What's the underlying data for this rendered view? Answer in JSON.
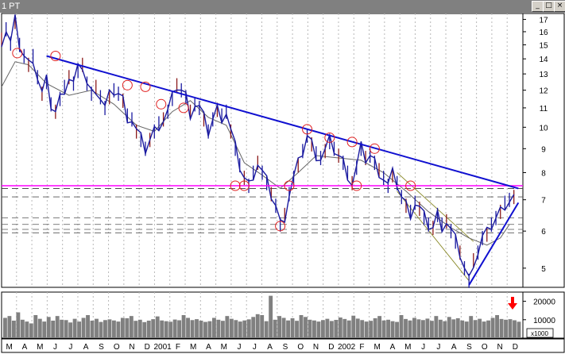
{
  "window": {
    "title": "1 PT",
    "btn_min": "_",
    "btn_max": "□",
    "btn_close": "×"
  },
  "chart_data": {
    "type": "line",
    "subtype": "candlestick-price-with-volume",
    "x_ticks": [
      "M",
      "A",
      "M",
      "J",
      "J",
      "A",
      "S",
      "O",
      "N",
      "D",
      "2001",
      "F",
      "M",
      "A",
      "M",
      "J",
      "J",
      "A",
      "S",
      "O",
      "N",
      "D",
      "2002",
      "F",
      "M",
      "A",
      "M",
      "J",
      "J",
      "A",
      "S",
      "O",
      "N",
      "D"
    ],
    "price_axis": {
      "ticks": [
        5,
        6,
        7,
        8,
        9,
        10,
        11,
        12,
        13,
        14,
        15,
        16,
        17
      ],
      "scale": "log",
      "range": [
        4.55,
        17.5
      ]
    },
    "volume_axis": {
      "ticks": [
        "20000",
        "10000"
      ],
      "unit_label": "x1000",
      "range": [
        0,
        25000
      ]
    },
    "price_series": [
      [
        0,
        15.4
      ],
      [
        2,
        16.2
      ],
      [
        4,
        15.1
      ],
      [
        6,
        16.8
      ],
      [
        8,
        15.0
      ],
      [
        10,
        14.2
      ],
      [
        12,
        13.6
      ],
      [
        14,
        14.2
      ],
      [
        16,
        12.8
      ],
      [
        18,
        11.8
      ],
      [
        20,
        12.5
      ],
      [
        22,
        11.2
      ],
      [
        24,
        10.8
      ],
      [
        26,
        11.5
      ],
      [
        28,
        12.2
      ],
      [
        30,
        12.8
      ],
      [
        32,
        12.4
      ],
      [
        34,
        13.2
      ],
      [
        36,
        13.6
      ],
      [
        38,
        12.4
      ],
      [
        40,
        11.8
      ],
      [
        42,
        12.2
      ],
      [
        44,
        11.6
      ],
      [
        46,
        11.0
      ],
      [
        48,
        11.6
      ],
      [
        50,
        12.0
      ],
      [
        52,
        11.8
      ],
      [
        54,
        11.4
      ],
      [
        56,
        10.6
      ],
      [
        58,
        10.4
      ],
      [
        60,
        9.8
      ],
      [
        62,
        9.4
      ],
      [
        64,
        9.0
      ],
      [
        66,
        9.4
      ],
      [
        68,
        9.8
      ],
      [
        70,
        10.2
      ],
      [
        72,
        10.4
      ],
      [
        74,
        10.8
      ],
      [
        76,
        11.5
      ],
      [
        78,
        12.3
      ],
      [
        80,
        12.0
      ],
      [
        82,
        11.6
      ],
      [
        84,
        10.8
      ],
      [
        86,
        11.2
      ],
      [
        88,
        11.0
      ],
      [
        90,
        10.4
      ],
      [
        92,
        9.8
      ],
      [
        94,
        10.4
      ],
      [
        96,
        10.9
      ],
      [
        98,
        10.6
      ],
      [
        100,
        10.8
      ],
      [
        102,
        9.8
      ],
      [
        104,
        9.0
      ],
      [
        106,
        8.3
      ],
      [
        108,
        7.8
      ],
      [
        110,
        7.5
      ],
      [
        112,
        8.0
      ],
      [
        114,
        8.4
      ],
      [
        116,
        8.0
      ],
      [
        118,
        7.6
      ],
      [
        120,
        7.2
      ],
      [
        122,
        6.8
      ],
      [
        124,
        6.2
      ],
      [
        126,
        6.5
      ],
      [
        128,
        7.2
      ],
      [
        130,
        7.8
      ],
      [
        132,
        8.3
      ],
      [
        134,
        8.9
      ],
      [
        136,
        9.6
      ],
      [
        138,
        9.2
      ],
      [
        140,
        8.8
      ],
      [
        142,
        8.6
      ],
      [
        144,
        8.9
      ],
      [
        146,
        9.3
      ],
      [
        148,
        9.0
      ],
      [
        150,
        8.7
      ],
      [
        152,
        8.4
      ],
      [
        154,
        8.0
      ],
      [
        156,
        7.6
      ],
      [
        158,
        8.2
      ],
      [
        160,
        9.0
      ],
      [
        162,
        8.6
      ],
      [
        164,
        8.7
      ],
      [
        166,
        8.4
      ],
      [
        168,
        8.1
      ],
      [
        170,
        7.8
      ],
      [
        172,
        7.5
      ],
      [
        174,
        7.9
      ],
      [
        176,
        7.6
      ],
      [
        178,
        7.1
      ],
      [
        180,
        6.8
      ],
      [
        182,
        6.6
      ],
      [
        184,
        6.9
      ],
      [
        186,
        6.7
      ],
      [
        188,
        6.4
      ],
      [
        190,
        6.2
      ],
      [
        192,
        6.1
      ],
      [
        194,
        6.5
      ],
      [
        196,
        6.2
      ],
      [
        198,
        6.3
      ],
      [
        200,
        6.0
      ],
      [
        202,
        5.7
      ],
      [
        204,
        5.4
      ],
      [
        206,
        5.0
      ],
      [
        208,
        4.7
      ],
      [
        210,
        5.2
      ],
      [
        212,
        5.4
      ],
      [
        214,
        5.8
      ],
      [
        216,
        5.9
      ],
      [
        218,
        6.2
      ],
      [
        220,
        6.4
      ],
      [
        222,
        6.6
      ],
      [
        224,
        6.9
      ],
      [
        226,
        7.0
      ],
      [
        228,
        7.1
      ]
    ],
    "ma_series": [
      [
        0,
        12.2
      ],
      [
        6,
        13.8
      ],
      [
        12,
        13.6
      ],
      [
        20,
        12.4
      ],
      [
        30,
        11.7
      ],
      [
        40,
        12.0
      ],
      [
        50,
        11.2
      ],
      [
        60,
        10.1
      ],
      [
        68,
        9.8
      ],
      [
        76,
        10.8
      ],
      [
        84,
        11.4
      ],
      [
        92,
        10.5
      ],
      [
        100,
        10.1
      ],
      [
        108,
        8.4
      ],
      [
        116,
        7.9
      ],
      [
        124,
        7.4
      ],
      [
        132,
        8.0
      ],
      [
        140,
        8.7
      ],
      [
        150,
        8.6
      ],
      [
        160,
        8.5
      ],
      [
        170,
        8.0
      ],
      [
        180,
        7.3
      ],
      [
        190,
        6.6
      ],
      [
        200,
        6.1
      ],
      [
        208,
        5.8
      ],
      [
        216,
        5.6
      ],
      [
        222,
        5.8
      ],
      [
        226,
        6.2
      ]
    ],
    "volume_values": [
      11000,
      12000,
      9500,
      14000,
      10000,
      9000,
      8000,
      12500,
      10500,
      9000,
      11500,
      9500,
      12000,
      10000,
      9800,
      8500,
      10500,
      9000,
      11000,
      12500,
      9500,
      10500,
      8800,
      9800,
      10200,
      9600,
      9000,
      11000,
      10800,
      12000,
      9400,
      10000,
      8700,
      9500,
      10300,
      11800,
      9600,
      9200,
      8900,
      10100,
      9700,
      12500,
      11000,
      9800,
      10300,
      9500,
      8800,
      9200,
      11000,
      10000,
      9400,
      12000,
      10500,
      9800,
      9000,
      9600,
      10200,
      11500,
      13000,
      12500,
      9200,
      23000,
      10000,
      12000,
      11000,
      9600,
      10800,
      9400,
      12500,
      11500,
      10000,
      9600,
      9000,
      9800,
      10500,
      9300,
      9900,
      11200,
      10400,
      9600,
      12200,
      10600,
      9800,
      9000,
      9400,
      10800,
      12000,
      9600,
      10000,
      9200,
      8800,
      12500,
      10400,
      9600,
      11000,
      10200,
      9800,
      10600,
      9400,
      12000,
      10000,
      9200,
      11500,
      10200,
      10800,
      9600,
      9000,
      12000,
      9800,
      10500,
      9000,
      9600,
      11000,
      12500,
      10400,
      10000,
      10300,
      9700,
      8900
    ],
    "trendlines": {
      "resistance_blue": {
        "from": [
          20,
          14.2
        ],
        "to": [
          230,
          7.4
        ],
        "color": "#1010d0"
      },
      "support_up_blue": {
        "from": [
          208,
          4.6
        ],
        "to": [
          230,
          6.9
        ],
        "color": "#1010d0"
      },
      "horizontal_magenta": {
        "y": 7.5,
        "color": "#ff00ff"
      },
      "dashed_levels": [
        7.4,
        7.1,
        6.4,
        6.2,
        6.05,
        5.95
      ],
      "channel_olive": {
        "upper": [
          [
            176,
            8.0
          ],
          [
            210,
            5.7
          ]
        ],
        "lower": [
          [
            176,
            7.3
          ],
          [
            208,
            4.7
          ]
        ]
      }
    },
    "circled_points": [
      [
        7,
        14.4
      ],
      [
        24,
        14.2
      ],
      [
        56,
        12.3
      ],
      [
        64,
        12.2
      ],
      [
        71,
        11.2
      ],
      [
        81,
        11.0
      ],
      [
        104,
        7.5
      ],
      [
        108,
        7.5
      ],
      [
        124,
        6.15
      ],
      [
        128,
        7.5
      ],
      [
        136,
        9.9
      ],
      [
        146,
        9.5
      ],
      [
        156,
        9.3
      ],
      [
        158,
        7.5
      ],
      [
        166,
        9.0
      ],
      [
        182,
        7.5
      ]
    ],
    "colors": {
      "price": "#1a1aa0",
      "ma": "#666666",
      "volume": "#808080",
      "arrow": "#ff0000",
      "circles": "#e02020"
    }
  }
}
